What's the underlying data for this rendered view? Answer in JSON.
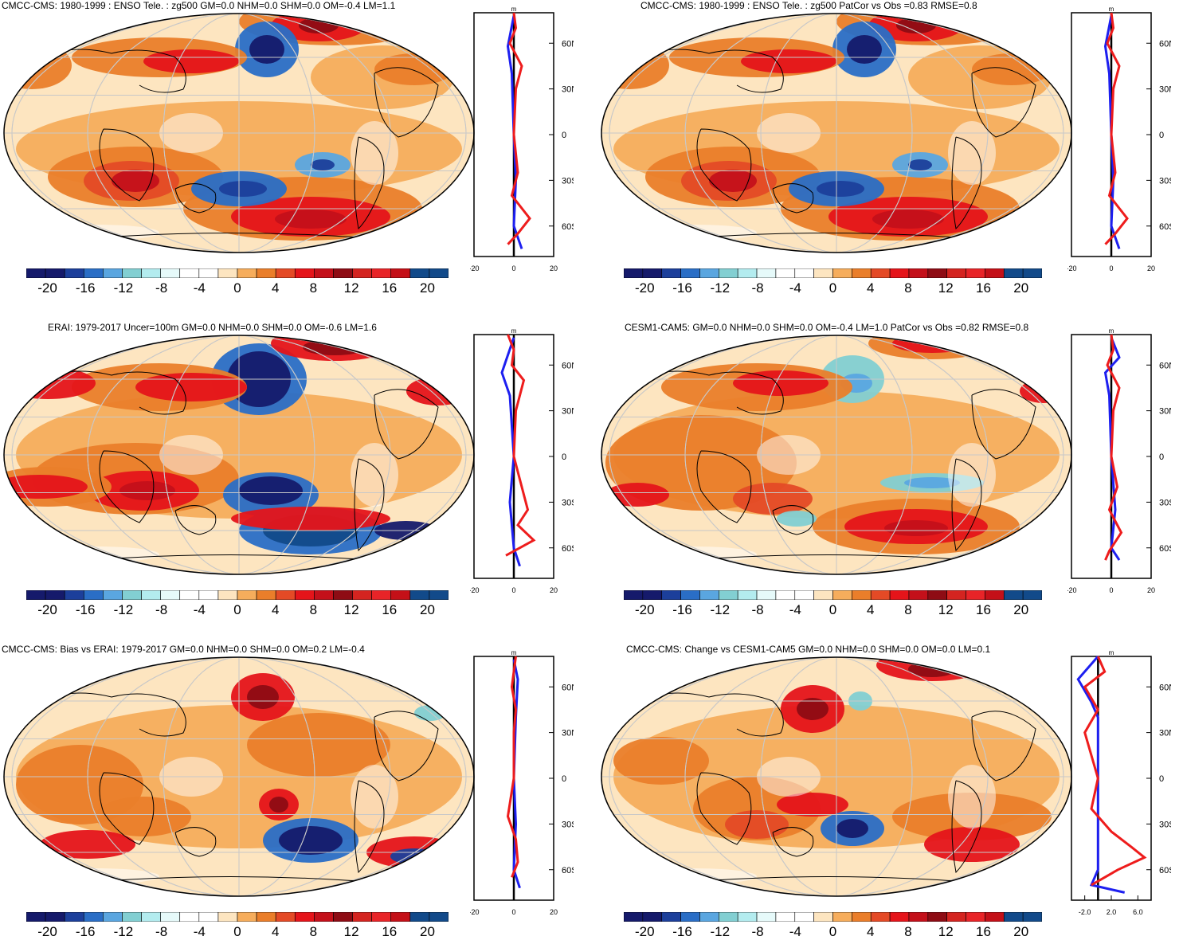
{
  "colors": {
    "palette": [
      "#151a6b",
      "#1c3f9b",
      "#2a6ec6",
      "#5aa6e0",
      "#82cfd2",
      "#b3ecef",
      "#e6fafa",
      "#ffffff",
      "#ffffff",
      "#fde5c0",
      "#f6ad5c",
      "#ea7e2a",
      "#e44a26",
      "#e5141a",
      "#c4101a",
      "#8e0c14",
      "#d42420",
      "#e82428",
      "#c41018",
      "#124a8a"
    ],
    "profile_red": "#ee1c1c",
    "profile_blue": "#1d1ff0",
    "grid": "#c8c8c8"
  },
  "colorbar_labels": [
    "-20",
    "-16",
    "-12",
    "-8",
    "-4",
    "0",
    "4",
    "8",
    "12",
    "16",
    "20"
  ],
  "panels": [
    {
      "title": "CMCC-CMS: 1980-1999 : ENSO Tele. : zg500 GM=0.0 NHM=0.0 SHM=0.0 OM=-0.4 LM=1.1",
      "profile": {
        "unit": "m",
        "x_ticks": [
          "-20",
          "0",
          "20"
        ],
        "y_ticks": [
          "60N",
          "30N",
          "0",
          "30S",
          "60S"
        ]
      }
    },
    {
      "title": "CMCC-CMS: 1980-1999 : ENSO Tele. : zg500 PatCor vs Obs =0.83 RMSE=0.8",
      "profile": {
        "unit": "m",
        "x_ticks": [
          "-20",
          "0",
          "20"
        ],
        "y_ticks": [
          "60N",
          "30N",
          "0",
          "30S",
          "60S"
        ]
      }
    },
    {
      "title": "ERAI: 1979-2017 Uncer=100m GM=0.0 NHM=0.0 SHM=0.0 OM=-0.6 LM=1.6",
      "profile": {
        "unit": "m",
        "x_ticks": [
          "-20",
          "0",
          "20"
        ],
        "y_ticks": [
          "60N",
          "30N",
          "0",
          "30S",
          "60S"
        ]
      }
    },
    {
      "title": "CESM1-CAM5: GM=0.0 NHM=0.0 SHM=0.0 OM=-0.4 LM=1.0 PatCor vs Obs =0.82 RMSE=0.8",
      "profile": {
        "unit": "m",
        "x_ticks": [
          "-20",
          "0",
          "20"
        ],
        "y_ticks": [
          "60N",
          "30N",
          "0",
          "30S",
          "60S"
        ]
      }
    },
    {
      "title": "CMCC-CMS: Bias vs ERAI: 1979-2017 GM=0.0 NHM=0.0 SHM=0.0 OM=0.2 LM=-0.4",
      "profile": {
        "unit": "m",
        "x_ticks": [
          "-20",
          "0",
          "20"
        ],
        "y_ticks": [
          "60N",
          "30N",
          "0",
          "30S",
          "60S"
        ]
      }
    },
    {
      "title": "CMCC-CMS: Change vs CESM1-CAM5 GM=0.0 NHM=0.0 SHM=0.0 OM=0.0 LM=0.1",
      "profile": {
        "unit": "m",
        "x_ticks": [
          "-2.0",
          "2.0",
          "6.0"
        ],
        "y_ticks": [
          "60N",
          "30N",
          "0",
          "30S",
          "60S"
        ]
      }
    }
  ],
  "chart_data": [
    {
      "type": "heatmap",
      "title": "CMCC-CMS: 1980-1999 : ENSO Tele. : zg500 GM=0.0 NHM=0.0 SHM=0.0 OM=-0.4 LM=1.1",
      "colorbar_range": [
        -22,
        22
      ],
      "colorbar_step": 2,
      "profile_xlim": [
        -20,
        20
      ],
      "profile_ylim": [
        -80,
        80
      ]
    },
    {
      "type": "heatmap",
      "title": "CMCC-CMS: 1980-1999 : ENSO Tele. : zg500 PatCor vs Obs =0.83 RMSE=0.8",
      "colorbar_range": [
        -22,
        22
      ],
      "colorbar_step": 2,
      "profile_xlim": [
        -20,
        20
      ],
      "profile_ylim": [
        -80,
        80
      ]
    },
    {
      "type": "heatmap",
      "title": "ERAI: 1979-2017 Uncer=100m GM=0.0 NHM=0.0 SHM=0.0 OM=-0.6 LM=1.6",
      "colorbar_range": [
        -22,
        22
      ],
      "colorbar_step": 2,
      "profile_xlim": [
        -20,
        20
      ],
      "profile_ylim": [
        -80,
        80
      ]
    },
    {
      "type": "heatmap",
      "title": "CESM1-CAM5: GM=0.0 NHM=0.0 SHM=0.0 OM=-0.4 LM=1.0 PatCor vs Obs =0.82 RMSE=0.8",
      "colorbar_range": [
        -22,
        22
      ],
      "colorbar_step": 2,
      "profile_xlim": [
        -20,
        20
      ],
      "profile_ylim": [
        -80,
        80
      ]
    },
    {
      "type": "heatmap",
      "title": "CMCC-CMS: Bias vs ERAI: 1979-2017 GM=0.0 NHM=0.0 SHM=0.0 OM=0.2 LM=-0.4",
      "colorbar_range": [
        -22,
        22
      ],
      "colorbar_step": 2,
      "profile_xlim": [
        -20,
        20
      ],
      "profile_ylim": [
        -80,
        80
      ]
    },
    {
      "type": "heatmap",
      "title": "CMCC-CMS: Change vs CESM1-CAM5 GM=0.0 NHM=0.0 SHM=0.0 OM=0.0 LM=0.1",
      "colorbar_range": [
        -22,
        22
      ],
      "colorbar_step": 2,
      "profile_xlim": [
        -4,
        8
      ],
      "profile_ylim": [
        -80,
        80
      ]
    }
  ]
}
